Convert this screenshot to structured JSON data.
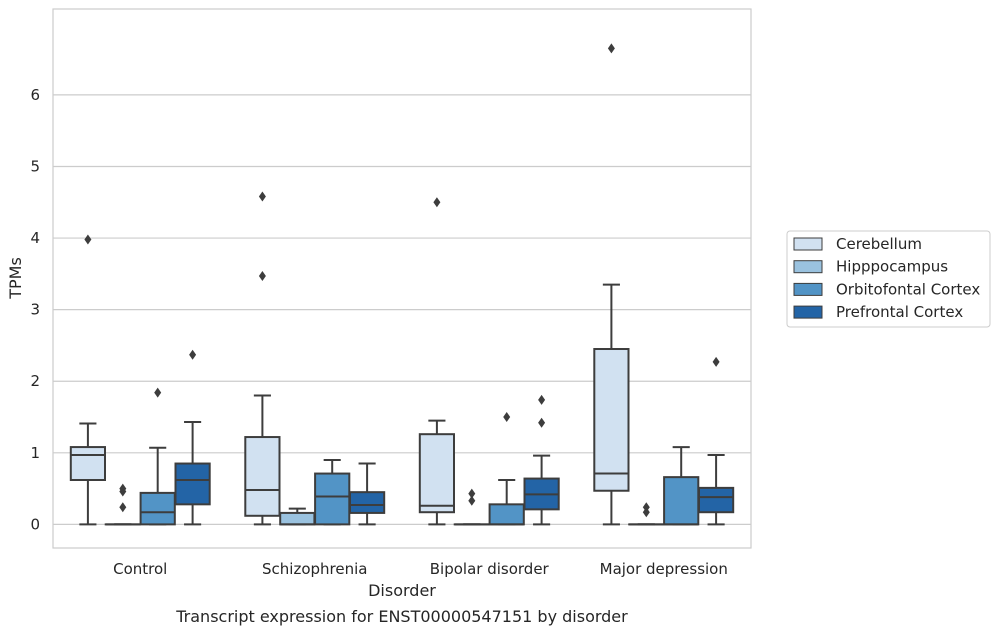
{
  "chart_data": {
    "type": "box",
    "xlabel": "Disorder",
    "ylabel": "TPMs",
    "caption": "Transcript expression for ENST00000547151 by disorder",
    "categories": [
      "Control",
      "Schizophrenia",
      "Bipolar disorder",
      "Major depression"
    ],
    "y_ticks": [
      0,
      1,
      2,
      3,
      4,
      5,
      6
    ],
    "ylim": [
      -0.33,
      7.2
    ],
    "grid": "horizontal",
    "legend_position": "right",
    "series": [
      {
        "name": "Cerebellum",
        "color": "#d1e1f1",
        "boxes": [
          {
            "whisker_low": 0,
            "q1": 0.62,
            "median": 0.97,
            "q3": 1.08,
            "whisker_high": 1.41,
            "outliers": [
              3.98
            ]
          },
          {
            "whisker_low": 0,
            "q1": 0.12,
            "median": 0.48,
            "q3": 1.22,
            "whisker_high": 1.8,
            "outliers": [
              3.47,
              4.58
            ]
          },
          {
            "whisker_low": 0,
            "q1": 0.17,
            "median": 0.26,
            "q3": 1.26,
            "whisker_high": 1.45,
            "outliers": [
              4.5
            ]
          },
          {
            "whisker_low": 0,
            "q1": 0.47,
            "median": 0.71,
            "q3": 2.45,
            "whisker_high": 3.35,
            "outliers": [
              6.65
            ]
          }
        ]
      },
      {
        "name": "Hipppocampus",
        "color": "#9ac2df",
        "boxes": [
          {
            "whisker_low": 0,
            "q1": 0,
            "median": 0,
            "q3": 0,
            "whisker_high": 0,
            "outliers": [
              0.24,
              0.46,
              0.5
            ]
          },
          {
            "whisker_low": 0,
            "q1": 0,
            "median": 0,
            "q3": 0.16,
            "whisker_high": 0.22,
            "outliers": []
          },
          {
            "whisker_low": 0,
            "q1": 0,
            "median": 0,
            "q3": 0,
            "whisker_high": 0,
            "outliers": [
              0.33,
              0.43
            ]
          },
          {
            "whisker_low": 0,
            "q1": 0,
            "median": 0,
            "q3": 0,
            "whisker_high": 0,
            "outliers": [
              0.17,
              0.24
            ]
          }
        ]
      },
      {
        "name": "Orbitofontal Cortex",
        "color": "#5294c6",
        "boxes": [
          {
            "whisker_low": 0,
            "q1": 0,
            "median": 0.17,
            "q3": 0.44,
            "whisker_high": 1.07,
            "outliers": [
              1.84
            ]
          },
          {
            "whisker_low": 0,
            "q1": 0,
            "median": 0.39,
            "q3": 0.71,
            "whisker_high": 0.9,
            "outliers": []
          },
          {
            "whisker_low": 0,
            "q1": 0,
            "median": 0,
            "q3": 0.28,
            "whisker_high": 0.62,
            "outliers": [
              1.5
            ]
          },
          {
            "whisker_low": 0,
            "q1": 0,
            "median": 0,
            "q3": 0.66,
            "whisker_high": 1.08,
            "outliers": []
          }
        ]
      },
      {
        "name": "Prefrontal Cortex",
        "color": "#2364a6",
        "boxes": [
          {
            "whisker_low": 0,
            "q1": 0.28,
            "median": 0.62,
            "q3": 0.85,
            "whisker_high": 1.43,
            "outliers": [
              2.37
            ]
          },
          {
            "whisker_low": 0,
            "q1": 0.16,
            "median": 0.27,
            "q3": 0.45,
            "whisker_high": 0.85,
            "outliers": []
          },
          {
            "whisker_low": 0,
            "q1": 0.21,
            "median": 0.42,
            "q3": 0.64,
            "whisker_high": 0.96,
            "outliers": [
              1.42,
              1.74
            ]
          },
          {
            "whisker_low": 0,
            "q1": 0.17,
            "median": 0.38,
            "q3": 0.51,
            "whisker_high": 0.97,
            "outliers": [
              2.27
            ]
          }
        ]
      }
    ]
  }
}
